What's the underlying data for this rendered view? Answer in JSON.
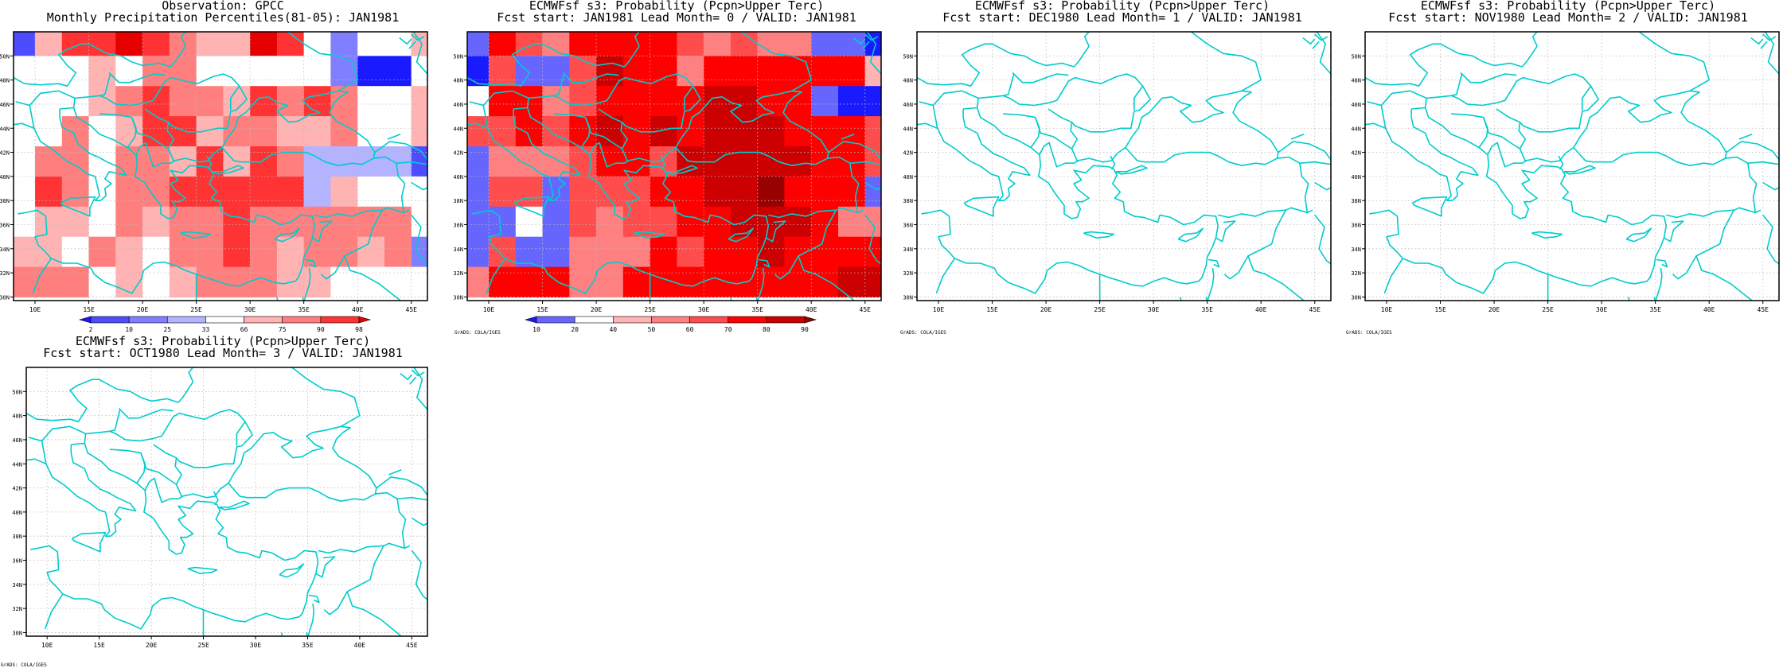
{
  "panels": [
    {
      "title_line1": "Observation: GPCC",
      "title_line2": "Monthly Precipitation Percentiles(81-05): JAN1981",
      "has_data": true,
      "grid_var": "obs",
      "colorbar": "obs_bar"
    },
    {
      "title_line1": "ECMWFsf s3: Probability (Pcpn>Upper Terc)",
      "title_line2": "Fcst start: JAN1981  Lead Month= 0 / VALID: JAN1981",
      "has_data": true,
      "grid_var": "fc0",
      "colorbar": "prob_bar",
      "credit": "GrADS: COLA/IGES"
    },
    {
      "title_line1": "ECMWFsf s3: Probability (Pcpn>Upper Terc)",
      "title_line2": "Fcst start: DEC1980  Lead Month= 1 / VALID: JAN1981",
      "has_data": false,
      "credit": "GrADS: COLA/IGES"
    },
    {
      "title_line1": "ECMWFsf s3: Probability (Pcpn>Upper Terc)",
      "title_line2": "Fcst start: NOV1980  Lead Month= 2 / VALID: JAN1981",
      "has_data": false,
      "credit": "GrADS: COLA/IGES"
    },
    {
      "title_line1": "ECMWFsf s3: Probability (Pcpn>Upper Terc)",
      "title_line2": "Fcst start: OCT1980  Lead Month= 3 / VALID: JAN1981",
      "has_data": false,
      "credit": "GrADS: COLA/IGES"
    }
  ],
  "axes": {
    "lon_labels": [
      "10E",
      "15E",
      "20E",
      "25E",
      "30E",
      "35E",
      "40E",
      "45E"
    ],
    "lon_values": [
      10,
      15,
      20,
      25,
      30,
      35,
      40,
      45
    ],
    "lat_labels": [
      "30N",
      "32N",
      "34N",
      "36N",
      "38N",
      "40N",
      "42N",
      "44N",
      "46N",
      "48N",
      "50N"
    ],
    "lat_values": [
      30,
      32,
      34,
      36,
      38,
      40,
      42,
      44,
      46,
      48,
      50
    ],
    "lon_range": [
      8,
      46.5
    ],
    "lat_range": [
      29.7,
      52
    ]
  },
  "colorbars": {
    "obs_bar": {
      "labels": [
        "2",
        "10",
        "25",
        "33",
        "66",
        "75",
        "90",
        "98"
      ],
      "colors": [
        "#1a1aff",
        "#4d4dff",
        "#7f7fff",
        "#b3b3ff",
        "#ffffff",
        "#ffb3b3",
        "#ff7f7f",
        "#ff3333",
        "#e60000"
      ]
    },
    "prob_bar": {
      "labels": [
        "10",
        "20",
        "40",
        "50",
        "60",
        "70",
        "80",
        "90"
      ],
      "colors": [
        "#1a1aff",
        "#6666ff",
        "#ffffff",
        "#ffb3b3",
        "#ff8080",
        "#ff4d4d",
        "#ff0000",
        "#cc0000",
        "#990000"
      ]
    }
  },
  "colors": {
    "coast": "#00cccc",
    "grid": "#bbbbbb"
  },
  "map_data": {
    "cell_deg": 2.5,
    "lon_start": 7.5,
    "lat_start": 30,
    "cols": 16,
    "rows": 9,
    "obs": [
      [
        1,
        5,
        7,
        7,
        8,
        7,
        6,
        5,
        5,
        8,
        7,
        4,
        2,
        4,
        4,
        5
      ],
      [
        4,
        4,
        4,
        5,
        4,
        6,
        6,
        4,
        4,
        4,
        4,
        4,
        2,
        0,
        0,
        4
      ],
      [
        4,
        4,
        4,
        5,
        6,
        7,
        6,
        6,
        5,
        7,
        6,
        7,
        6,
        4,
        4,
        5
      ],
      [
        4,
        4,
        6,
        4,
        5,
        7,
        7,
        5,
        6,
        6,
        5,
        5,
        6,
        4,
        4,
        5
      ],
      [
        4,
        6,
        6,
        4,
        6,
        6,
        5,
        7,
        5,
        7,
        6,
        3,
        3,
        3,
        3,
        1
      ],
      [
        4,
        7,
        6,
        4,
        6,
        6,
        7,
        7,
        7,
        7,
        7,
        3,
        5,
        4,
        4,
        4
      ],
      [
        4,
        5,
        5,
        4,
        6,
        5,
        6,
        6,
        7,
        6,
        6,
        6,
        6,
        6,
        6,
        4
      ],
      [
        5,
        5,
        4,
        6,
        5,
        4,
        6,
        6,
        7,
        6,
        5,
        6,
        6,
        5,
        6,
        2
      ],
      [
        6,
        6,
        6,
        4,
        5,
        4,
        5,
        6,
        6,
        6,
        5,
        5,
        4,
        4,
        4,
        4
      ]
    ],
    "fc0": [
      [
        1,
        6,
        5,
        4,
        6,
        6,
        6,
        6,
        5,
        4,
        5,
        4,
        4,
        1,
        1,
        0
      ],
      [
        0,
        5,
        1,
        1,
        5,
        7,
        6,
        6,
        4,
        6,
        6,
        6,
        6,
        6,
        6,
        3
      ],
      [
        2,
        6,
        6,
        4,
        5,
        6,
        6,
        6,
        6,
        7,
        7,
        6,
        6,
        1,
        0,
        0
      ],
      [
        5,
        5,
        6,
        5,
        6,
        7,
        6,
        7,
        6,
        7,
        7,
        7,
        6,
        6,
        6,
        5
      ],
      [
        1,
        4,
        4,
        4,
        5,
        6,
        6,
        5,
        7,
        7,
        7,
        7,
        7,
        6,
        6,
        5
      ],
      [
        1,
        5,
        5,
        1,
        5,
        5,
        5,
        6,
        6,
        7,
        7,
        8,
        6,
        6,
        6,
        1
      ],
      [
        1,
        1,
        2,
        1,
        5,
        4,
        5,
        5,
        6,
        6,
        7,
        7,
        7,
        6,
        4,
        4
      ],
      [
        1,
        5,
        1,
        1,
        4,
        4,
        4,
        6,
        5,
        6,
        6,
        7,
        6,
        6,
        6,
        6
      ],
      [
        4,
        6,
        6,
        6,
        4,
        4,
        6,
        6,
        6,
        6,
        6,
        6,
        6,
        6,
        7,
        7
      ]
    ]
  }
}
